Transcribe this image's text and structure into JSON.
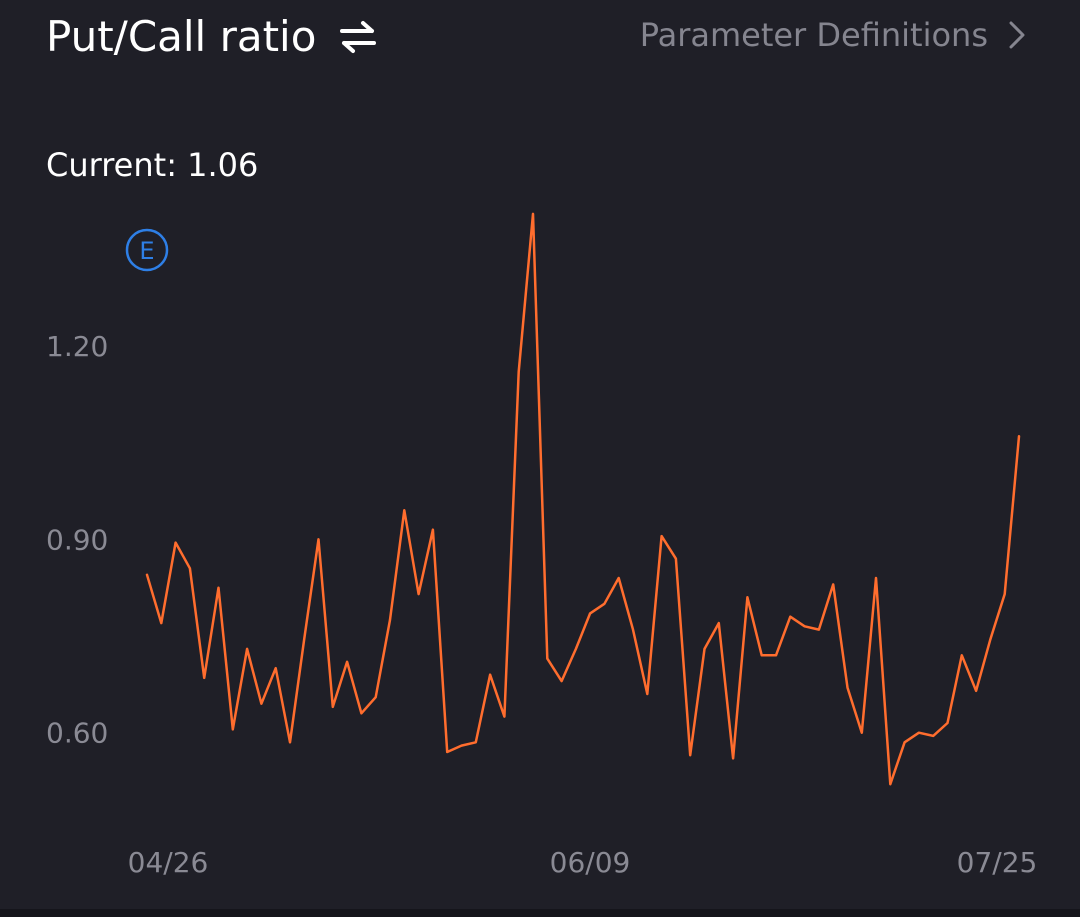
{
  "header": {
    "title": "Put/Call ratio",
    "swap_icon": "swap-arrows-icon",
    "param_link": "Parameter Definitions",
    "param_icon": "chevron-right-icon"
  },
  "current": {
    "label": "Current: 1.06"
  },
  "event_marker": {
    "label": "E",
    "color": "#2e7fe6"
  },
  "colors": {
    "background": "#1f1f27",
    "line": "#ff6d2e",
    "tick": "#8a8a94"
  },
  "chart_data": {
    "type": "line",
    "title": "",
    "xlabel": "",
    "ylabel": "",
    "ylim": [
      0.48,
      1.38
    ],
    "yticks": [
      "1.20",
      "0.90",
      "0.60"
    ],
    "xticks": [
      "04/26",
      "06/09",
      "07/25"
    ],
    "grid": false,
    "series": [
      {
        "values": [
          0.845,
          0.77,
          0.895,
          0.855,
          0.685,
          0.825,
          0.605,
          0.73,
          0.645,
          0.7,
          0.585,
          0.745,
          0.9,
          0.64,
          0.71,
          0.63,
          0.655,
          0.775,
          0.945,
          0.815,
          0.915,
          0.57,
          0.58,
          0.585,
          0.69,
          0.625,
          1.16,
          1.405,
          0.715,
          0.68,
          0.73,
          0.785,
          0.8,
          0.84,
          0.76,
          0.66,
          0.905,
          0.87,
          0.565,
          0.73,
          0.77,
          0.56,
          0.81,
          0.72,
          0.72,
          0.78,
          0.765,
          0.76,
          0.83,
          0.67,
          0.6,
          0.84,
          0.52,
          0.585,
          0.6,
          0.595,
          0.615,
          0.72,
          0.665,
          0.745,
          0.815,
          1.06
        ]
      }
    ]
  }
}
